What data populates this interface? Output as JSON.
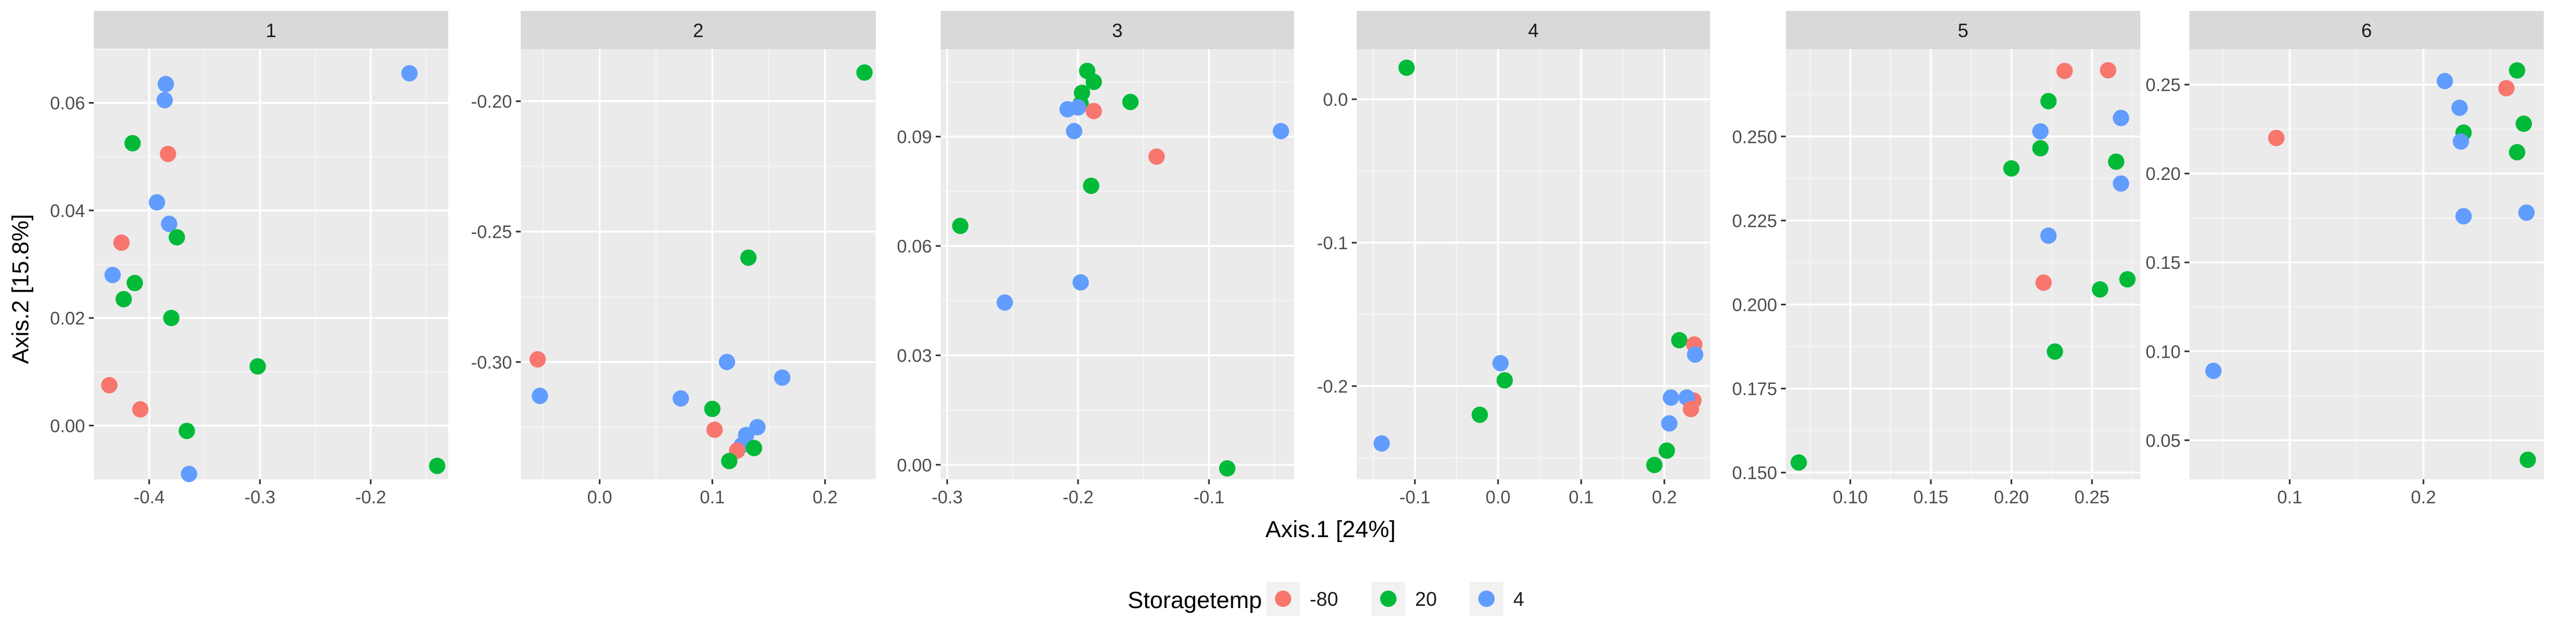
{
  "chart_data": {
    "type": "scatter",
    "title": "",
    "xlabel": "Axis.1   [24%]",
    "ylabel": "Axis.2   [15.8%]",
    "legend": {
      "title": "Storagetemp",
      "position": "bottom",
      "entries": [
        {
          "label": "-80",
          "color": "#F8766D"
        },
        {
          "label": "20",
          "color": "#00BA38"
        },
        {
          "label": "4",
          "color": "#619CFF"
        }
      ]
    },
    "colors": {
      "-80": "#F8766D",
      "20": "#00BA38",
      "4": "#619CFF"
    },
    "panels": [
      {
        "strip": "1",
        "xlim": [
          -0.45,
          -0.13
        ],
        "ylim": [
          -0.01,
          0.07
        ],
        "xticks": [
          -0.4,
          -0.3,
          -0.2
        ],
        "xtick_labels": [
          "-0.4",
          "-0.3",
          "-0.2"
        ],
        "yticks": [
          0.0,
          0.02,
          0.04,
          0.06
        ],
        "ytick_labels": [
          "0.00",
          "0.02",
          "0.04",
          "0.06"
        ],
        "points": [
          {
            "x": -0.165,
            "y": 0.0655,
            "group": "4"
          },
          {
            "x": -0.385,
            "y": 0.0635,
            "group": "4"
          },
          {
            "x": -0.386,
            "y": 0.0605,
            "group": "4"
          },
          {
            "x": -0.415,
            "y": 0.0525,
            "group": "20"
          },
          {
            "x": -0.383,
            "y": 0.0505,
            "group": "-80"
          },
          {
            "x": -0.393,
            "y": 0.0415,
            "group": "4"
          },
          {
            "x": -0.382,
            "y": 0.0375,
            "group": "4"
          },
          {
            "x": -0.375,
            "y": 0.035,
            "group": "20"
          },
          {
            "x": -0.425,
            "y": 0.034,
            "group": "-80"
          },
          {
            "x": -0.433,
            "y": 0.028,
            "group": "4"
          },
          {
            "x": -0.413,
            "y": 0.0265,
            "group": "20"
          },
          {
            "x": -0.423,
            "y": 0.0235,
            "group": "20"
          },
          {
            "x": -0.38,
            "y": 0.02,
            "group": "20"
          },
          {
            "x": -0.302,
            "y": 0.011,
            "group": "20"
          },
          {
            "x": -0.436,
            "y": 0.0075,
            "group": "-80"
          },
          {
            "x": -0.408,
            "y": 0.003,
            "group": "-80"
          },
          {
            "x": -0.366,
            "y": -0.001,
            "group": "20"
          },
          {
            "x": -0.14,
            "y": -0.0075,
            "group": "20"
          },
          {
            "x": -0.364,
            "y": -0.009,
            "group": "4"
          }
        ]
      },
      {
        "strip": "2",
        "xlim": [
          -0.07,
          0.245
        ],
        "ylim": [
          -0.345,
          -0.18
        ],
        "xticks": [
          0.0,
          0.1,
          0.2
        ],
        "xtick_labels": [
          "0.0",
          "0.1",
          "0.2"
        ],
        "yticks": [
          -0.3,
          -0.25,
          -0.2
        ],
        "ytick_labels": [
          "-0.30",
          "-0.25",
          "-0.20"
        ],
        "points": [
          {
            "x": 0.235,
            "y": -0.189,
            "group": "20"
          },
          {
            "x": 0.132,
            "y": -0.26,
            "group": "20"
          },
          {
            "x": -0.055,
            "y": -0.299,
            "group": "-80"
          },
          {
            "x": 0.113,
            "y": -0.3,
            "group": "4"
          },
          {
            "x": 0.162,
            "y": -0.306,
            "group": "4"
          },
          {
            "x": -0.053,
            "y": -0.313,
            "group": "4"
          },
          {
            "x": 0.072,
            "y": -0.314,
            "group": "4"
          },
          {
            "x": 0.1,
            "y": -0.318,
            "group": "20"
          },
          {
            "x": 0.102,
            "y": -0.326,
            "group": "-80"
          },
          {
            "x": 0.14,
            "y": -0.325,
            "group": "4"
          },
          {
            "x": 0.13,
            "y": -0.328,
            "group": "4"
          },
          {
            "x": 0.126,
            "y": -0.332,
            "group": "4"
          },
          {
            "x": 0.137,
            "y": -0.333,
            "group": "20"
          },
          {
            "x": 0.122,
            "y": -0.334,
            "group": "-80"
          },
          {
            "x": 0.115,
            "y": -0.338,
            "group": "20"
          }
        ]
      },
      {
        "strip": "3",
        "xlim": [
          -0.305,
          -0.035
        ],
        "ylim": [
          -0.004,
          0.114
        ],
        "xticks": [
          -0.3,
          -0.2,
          -0.1
        ],
        "xtick_labels": [
          "-0.3",
          "-0.2",
          "-0.1"
        ],
        "yticks": [
          0.0,
          0.03,
          0.06,
          0.09
        ],
        "ytick_labels": [
          "0.00",
          "0.03",
          "0.06",
          "0.09"
        ],
        "points": [
          {
            "x": -0.193,
            "y": 0.108,
            "group": "20"
          },
          {
            "x": -0.188,
            "y": 0.105,
            "group": "20"
          },
          {
            "x": -0.197,
            "y": 0.102,
            "group": "20"
          },
          {
            "x": -0.198,
            "y": 0.099,
            "group": "20"
          },
          {
            "x": -0.16,
            "y": 0.0995,
            "group": "20"
          },
          {
            "x": -0.208,
            "y": 0.0975,
            "group": "4"
          },
          {
            "x": -0.2,
            "y": 0.098,
            "group": "4"
          },
          {
            "x": -0.188,
            "y": 0.097,
            "group": "-80"
          },
          {
            "x": -0.045,
            "y": 0.0915,
            "group": "4"
          },
          {
            "x": -0.203,
            "y": 0.0915,
            "group": "4"
          },
          {
            "x": -0.14,
            "y": 0.0845,
            "group": "-80"
          },
          {
            "x": -0.19,
            "y": 0.0765,
            "group": "20"
          },
          {
            "x": -0.29,
            "y": 0.0655,
            "group": "20"
          },
          {
            "x": -0.198,
            "y": 0.05,
            "group": "4"
          },
          {
            "x": -0.256,
            "y": 0.0445,
            "group": "4"
          },
          {
            "x": -0.086,
            "y": -0.001,
            "group": "20"
          }
        ]
      },
      {
        "strip": "4",
        "xlim": [
          -0.17,
          0.255
        ],
        "ylim": [
          -0.265,
          0.035
        ],
        "xticks": [
          -0.1,
          0.0,
          0.1,
          0.2
        ],
        "xtick_labels": [
          "-0.1",
          "0.0",
          "0.1",
          "0.2"
        ],
        "yticks": [
          -0.2,
          -0.1,
          0.0
        ],
        "ytick_labels": [
          "-0.2",
          "-0.1",
          "0.0"
        ],
        "points": [
          {
            "x": -0.11,
            "y": 0.022,
            "group": "20"
          },
          {
            "x": 0.218,
            "y": -0.168,
            "group": "20"
          },
          {
            "x": 0.236,
            "y": -0.171,
            "group": "-80"
          },
          {
            "x": 0.237,
            "y": -0.178,
            "group": "4"
          },
          {
            "x": 0.003,
            "y": -0.184,
            "group": "4"
          },
          {
            "x": 0.008,
            "y": -0.196,
            "group": "20"
          },
          {
            "x": 0.235,
            "y": -0.21,
            "group": "-80"
          },
          {
            "x": 0.208,
            "y": -0.208,
            "group": "4"
          },
          {
            "x": 0.227,
            "y": -0.208,
            "group": "4"
          },
          {
            "x": 0.232,
            "y": -0.216,
            "group": "-80"
          },
          {
            "x": -0.022,
            "y": -0.22,
            "group": "20"
          },
          {
            "x": 0.206,
            "y": -0.226,
            "group": "4"
          },
          {
            "x": -0.14,
            "y": -0.24,
            "group": "4"
          },
          {
            "x": 0.203,
            "y": -0.245,
            "group": "20"
          },
          {
            "x": 0.188,
            "y": -0.255,
            "group": "20"
          }
        ]
      },
      {
        "strip": "5",
        "xlim": [
          0.06,
          0.28
        ],
        "ylim": [
          0.148,
          0.276
        ],
        "xticks": [
          0.1,
          0.15,
          0.2,
          0.25
        ],
        "xtick_labels": [
          "0.10",
          "0.15",
          "0.20",
          "0.25"
        ],
        "yticks": [
          0.15,
          0.175,
          0.2,
          0.225,
          0.25
        ],
        "ytick_labels": [
          "0.150",
          "0.175",
          "0.200",
          "0.225",
          "0.250"
        ],
        "points": [
          {
            "x": 0.233,
            "y": 0.2695,
            "group": "-80"
          },
          {
            "x": 0.26,
            "y": 0.2697,
            "group": "-80"
          },
          {
            "x": 0.223,
            "y": 0.2605,
            "group": "20"
          },
          {
            "x": 0.268,
            "y": 0.2555,
            "group": "4"
          },
          {
            "x": 0.218,
            "y": 0.2515,
            "group": "4"
          },
          {
            "x": 0.218,
            "y": 0.2465,
            "group": "20"
          },
          {
            "x": 0.265,
            "y": 0.2425,
            "group": "20"
          },
          {
            "x": 0.2,
            "y": 0.2405,
            "group": "20"
          },
          {
            "x": 0.268,
            "y": 0.236,
            "group": "4"
          },
          {
            "x": 0.223,
            "y": 0.2205,
            "group": "4"
          },
          {
            "x": 0.22,
            "y": 0.2065,
            "group": "-80"
          },
          {
            "x": 0.272,
            "y": 0.2075,
            "group": "20"
          },
          {
            "x": 0.255,
            "y": 0.2045,
            "group": "20"
          },
          {
            "x": 0.227,
            "y": 0.186,
            "group": "20"
          },
          {
            "x": 0.068,
            "y": 0.153,
            "group": "20"
          }
        ]
      },
      {
        "strip": "6",
        "xlim": [
          0.025,
          0.29
        ],
        "ylim": [
          0.028,
          0.27
        ],
        "xticks": [
          0.1,
          0.2
        ],
        "xtick_labels": [
          "0.1",
          "0.2"
        ],
        "yticks": [
          0.05,
          0.1,
          0.15,
          0.2,
          0.25
        ],
        "ytick_labels": [
          "0.05",
          "0.10",
          "0.15",
          "0.20",
          "0.25"
        ],
        "points": [
          {
            "x": 0.27,
            "y": 0.258,
            "group": "20"
          },
          {
            "x": 0.216,
            "y": 0.252,
            "group": "4"
          },
          {
            "x": 0.262,
            "y": 0.248,
            "group": "-80"
          },
          {
            "x": 0.227,
            "y": 0.237,
            "group": "4"
          },
          {
            "x": 0.275,
            "y": 0.228,
            "group": "20"
          },
          {
            "x": 0.23,
            "y": 0.223,
            "group": "20"
          },
          {
            "x": 0.09,
            "y": 0.22,
            "group": "-80"
          },
          {
            "x": 0.228,
            "y": 0.218,
            "group": "4"
          },
          {
            "x": 0.27,
            "y": 0.212,
            "group": "20"
          },
          {
            "x": 0.277,
            "y": 0.178,
            "group": "4"
          },
          {
            "x": 0.23,
            "y": 0.176,
            "group": "4"
          },
          {
            "x": 0.043,
            "y": 0.089,
            "group": "4"
          },
          {
            "x": 0.278,
            "y": 0.039,
            "group": "20"
          }
        ]
      }
    ]
  }
}
